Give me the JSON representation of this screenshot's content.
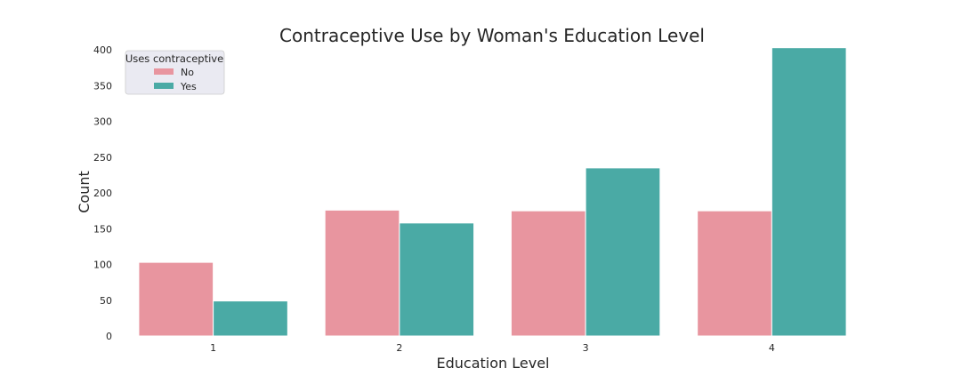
{
  "chart_data": {
    "type": "bar",
    "title": "Contraceptive Use by Woman's Education Level",
    "xlabel": "Education Level",
    "ylabel": "Count",
    "categories": [
      "1",
      "2",
      "3",
      "4"
    ],
    "series": [
      {
        "name": "No",
        "values": [
          103,
          176,
          175,
          175
        ],
        "color": "#e8959f"
      },
      {
        "name": "Yes",
        "values": [
          49,
          158,
          235,
          403
        ],
        "color": "#4aaaa5"
      }
    ],
    "ylim": [
      0,
      420
    ],
    "yticks": [
      0,
      50,
      100,
      150,
      200,
      250,
      300,
      350,
      400
    ],
    "legend": {
      "title": "Uses contraceptive",
      "position": "top-left"
    },
    "grid": false
  }
}
